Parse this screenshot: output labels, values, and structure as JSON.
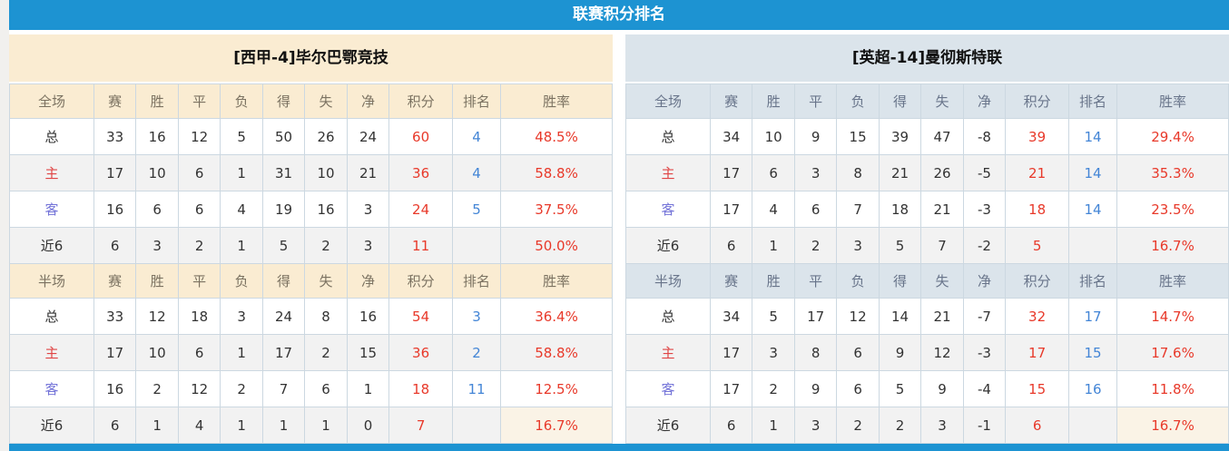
{
  "title": "联赛积分排名",
  "columns": {
    "full_label": "全场",
    "half_label": "半场",
    "stat_columns": [
      "赛",
      "胜",
      "平",
      "负",
      "得",
      "失",
      "净",
      "积分",
      "排名",
      "胜率"
    ]
  },
  "colors": {
    "accent_blue": "#1d93d2",
    "left_panel_bg": "#faecd2",
    "right_panel_bg": "#dbe4eb",
    "points_red": "#e8392a",
    "rank_blue": "#4385d6",
    "label_home_red": "#e04545",
    "label_away_blue": "#7373d8",
    "border": "#ccd8e1",
    "stripe": "#f2f2f2",
    "highlight_cream": "#faf3e6"
  },
  "teams": [
    {
      "name": "[西甲-4]毕尔巴鄂竞技",
      "full_rows": [
        {
          "label": "总",
          "cls": "total",
          "values": [
            "33",
            "16",
            "12",
            "5",
            "50",
            "26",
            "24"
          ],
          "points": "60",
          "rank": "4",
          "rate": "48.5%"
        },
        {
          "label": "主",
          "cls": "home",
          "values": [
            "17",
            "10",
            "6",
            "1",
            "31",
            "10",
            "21"
          ],
          "points": "36",
          "rank": "4",
          "rate": "58.8%"
        },
        {
          "label": "客",
          "cls": "away",
          "values": [
            "16",
            "6",
            "6",
            "4",
            "19",
            "16",
            "3"
          ],
          "points": "24",
          "rank": "5",
          "rate": "37.5%"
        },
        {
          "label": "近6",
          "cls": "recent",
          "values": [
            "6",
            "3",
            "2",
            "1",
            "5",
            "2",
            "3"
          ],
          "points": "11",
          "rank": "",
          "rate": "50.0%"
        }
      ],
      "half_rows": [
        {
          "label": "总",
          "cls": "total",
          "values": [
            "33",
            "12",
            "18",
            "3",
            "24",
            "8",
            "16"
          ],
          "points": "54",
          "rank": "3",
          "rate": "36.4%"
        },
        {
          "label": "主",
          "cls": "home",
          "values": [
            "17",
            "10",
            "6",
            "1",
            "17",
            "2",
            "15"
          ],
          "points": "36",
          "rank": "2",
          "rate": "58.8%"
        },
        {
          "label": "客",
          "cls": "away",
          "values": [
            "16",
            "2",
            "12",
            "2",
            "7",
            "6",
            "1"
          ],
          "points": "18",
          "rank": "11",
          "rate": "12.5%"
        },
        {
          "label": "近6",
          "cls": "recent",
          "values": [
            "6",
            "1",
            "4",
            "1",
            "1",
            "1",
            "0"
          ],
          "points": "7",
          "rank": "",
          "rate": "16.7%",
          "rate_highlight": true
        }
      ]
    },
    {
      "name": "[英超-14]曼彻斯特联",
      "full_rows": [
        {
          "label": "总",
          "cls": "total",
          "values": [
            "34",
            "10",
            "9",
            "15",
            "39",
            "47",
            "-8"
          ],
          "points": "39",
          "rank": "14",
          "rate": "29.4%"
        },
        {
          "label": "主",
          "cls": "home",
          "values": [
            "17",
            "6",
            "3",
            "8",
            "21",
            "26",
            "-5"
          ],
          "points": "21",
          "rank": "14",
          "rate": "35.3%"
        },
        {
          "label": "客",
          "cls": "away",
          "values": [
            "17",
            "4",
            "6",
            "7",
            "18",
            "21",
            "-3"
          ],
          "points": "18",
          "rank": "14",
          "rate": "23.5%"
        },
        {
          "label": "近6",
          "cls": "recent",
          "values": [
            "6",
            "1",
            "2",
            "3",
            "5",
            "7",
            "-2"
          ],
          "points": "5",
          "rank": "",
          "rate": "16.7%"
        }
      ],
      "half_rows": [
        {
          "label": "总",
          "cls": "total",
          "values": [
            "34",
            "5",
            "17",
            "12",
            "14",
            "21",
            "-7"
          ],
          "points": "32",
          "rank": "17",
          "rate": "14.7%"
        },
        {
          "label": "主",
          "cls": "home",
          "values": [
            "17",
            "3",
            "8",
            "6",
            "9",
            "12",
            "-3"
          ],
          "points": "17",
          "rank": "15",
          "rate": "17.6%"
        },
        {
          "label": "客",
          "cls": "away",
          "values": [
            "17",
            "2",
            "9",
            "6",
            "5",
            "9",
            "-4"
          ],
          "points": "15",
          "rank": "16",
          "rate": "11.8%"
        },
        {
          "label": "近6",
          "cls": "recent",
          "values": [
            "6",
            "1",
            "3",
            "2",
            "2",
            "3",
            "-1"
          ],
          "points": "6",
          "rank": "",
          "rate": "16.7%",
          "rate_highlight": true
        }
      ]
    }
  ]
}
